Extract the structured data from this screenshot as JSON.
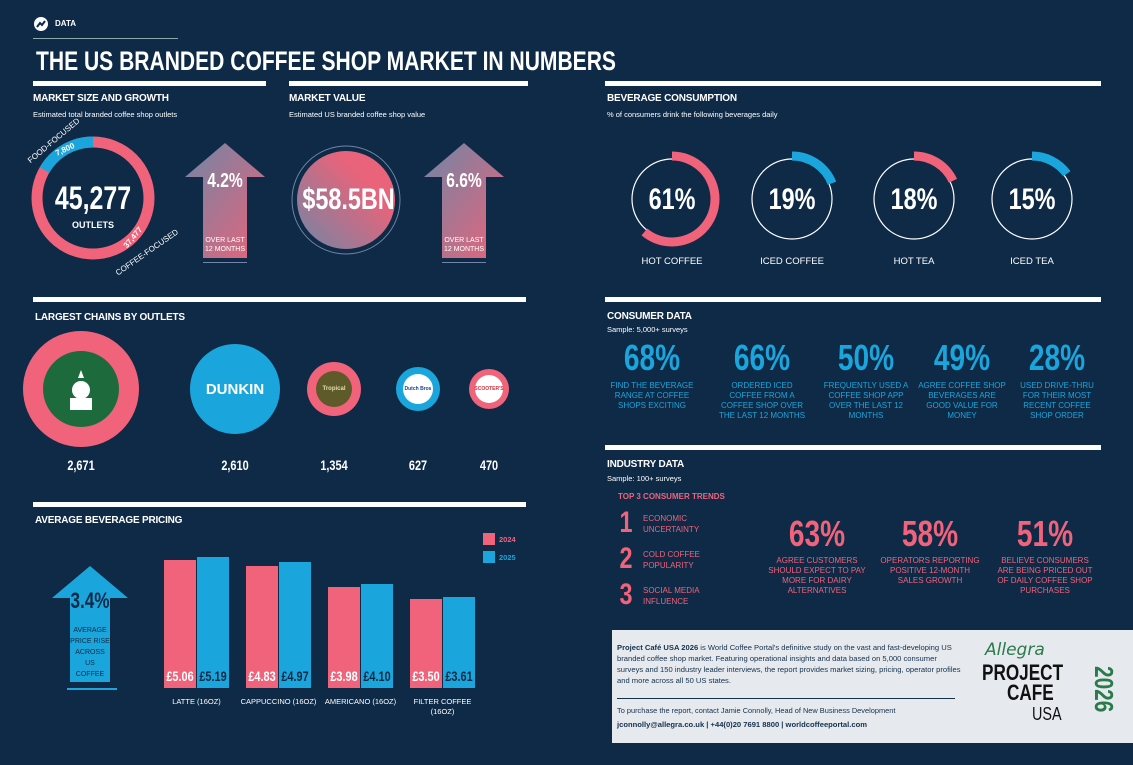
{
  "header": {
    "tag": "DATA",
    "title": "THE US BRANDED COFFEE SHOP MARKET IN NUMBERS",
    "icon": "trend-chart-icon"
  },
  "colors": {
    "background": "#0e2a47",
    "pink": "#f0637a",
    "blue": "#1aa6dc"
  },
  "market_size": {
    "title": "MARKET SIZE AND GROWTH",
    "subtitle": "Estimated total branded coffee shop outlets",
    "total": "45,277",
    "total_label": "OUTLETS",
    "food_label": "FOOD-FOCUSED",
    "food_value": "7,800",
    "coffee_label": "COFFEE-FOCUSED",
    "coffee_value": "37,477",
    "growth": "4.2%",
    "growth_label": "OVER LAST 12 MONTHS"
  },
  "market_value": {
    "title": "MARKET VALUE",
    "subtitle": "Estimated US branded coffee shop value",
    "value": "$58.5BN",
    "growth": "6.6%",
    "growth_label": "OVER LAST 12 MONTHS"
  },
  "beverage": {
    "title": "BEVERAGE CONSUMPTION",
    "subtitle": "% of consumers drink the following beverages daily",
    "items": [
      {
        "value": "61%",
        "pct": 61,
        "label": "HOT COFFEE",
        "color": "#f0637a"
      },
      {
        "value": "19%",
        "pct": 19,
        "label": "ICED COFFEE",
        "color": "#1aa6dc"
      },
      {
        "value": "18%",
        "pct": 18,
        "label": "HOT TEA",
        "color": "#f0637a"
      },
      {
        "value": "15%",
        "pct": 15,
        "label": "ICED TEA",
        "color": "#1aa6dc"
      }
    ]
  },
  "consumer": {
    "title": "CONSUMER DATA",
    "subtitle": "Sample: 5,000+ surveys",
    "items": [
      {
        "value": "68%",
        "label": "FIND THE BEVERAGE RANGE AT COFFEE SHOPS EXCITING"
      },
      {
        "value": "66%",
        "label": "ORDERED ICED COFFEE FROM A COFFEE SHOP OVER THE LAST 12 MONTHS"
      },
      {
        "value": "50%",
        "label": "FREQUENTLY USED A COFFEE SHOP APP OVER THE LAST 12 MONTHS"
      },
      {
        "value": "49%",
        "label": "AGREE COFFEE SHOP BEVERAGES ARE GOOD VALUE FOR MONEY"
      },
      {
        "value": "28%",
        "label": "USED DRIVE-THRU FOR THEIR MOST RECENT COFFEE SHOP ORDER"
      }
    ]
  },
  "industry": {
    "title": "INDUSTRY DATA",
    "subtitle": "Sample: 100+ surveys",
    "trends_title": "TOP 3 CONSUMER TRENDS",
    "trends": [
      {
        "n": "1",
        "label": "ECONOMIC UNCERTAINTY"
      },
      {
        "n": "2",
        "label": "COLD COFFEE POPULARITY"
      },
      {
        "n": "3",
        "label": "SOCIAL MEDIA INFLUENCE"
      }
    ],
    "items": [
      {
        "value": "63%",
        "label": "AGREE CUSTOMERS SHOULD EXPECT TO PAY MORE FOR DAIRY ALTERNATIVES"
      },
      {
        "value": "58%",
        "label": "OPERATORS REPORTING POSITIVE 12-MONTH SALES GROWTH"
      },
      {
        "value": "51%",
        "label": "BELIEVE CONSUMERS ARE BEING PRICED OUT OF DAILY COFFEE SHOP PURCHASES"
      }
    ]
  },
  "chains": {
    "title": "LARGEST CHAINS BY OUTLETS",
    "items": [
      {
        "name": "Starbucks",
        "value": "2,671",
        "ring": "#f0637a"
      },
      {
        "name": "DUNKIN",
        "value": "2,610",
        "ring": "#1aa6dc"
      },
      {
        "name": "Tropical",
        "value": "1,354",
        "ring": "#f0637a"
      },
      {
        "name": "Dutch Bros",
        "value": "627",
        "ring": "#1aa6dc"
      },
      {
        "name": "SCOOTER'S",
        "value": "470",
        "ring": "#f0637a"
      }
    ]
  },
  "pricing": {
    "title": "AVERAGE BEVERAGE PRICING",
    "rise": "3.4%",
    "rise_label": "AVERAGE PRICE RISE ACROSS US COFFEE CHAINS"
  },
  "chart_data": {
    "type": "bar",
    "title": "AVERAGE BEVERAGE PRICING",
    "categories": [
      "LATTE (16OZ)",
      "CAPPUCCINO (16OZ)",
      "AMERICANO (16OZ)",
      "FILTER COFFEE (16OZ)"
    ],
    "series": [
      {
        "name": "2024",
        "color": "#f0637a",
        "values": [
          5.06,
          4.83,
          3.98,
          3.5
        ],
        "labels": [
          "£5.06",
          "£4.83",
          "£3.98",
          "£3.50"
        ]
      },
      {
        "name": "2025",
        "color": "#1aa6dc",
        "values": [
          5.19,
          4.97,
          4.1,
          3.61
        ],
        "labels": [
          "£5.19",
          "£4.97",
          "£4.10",
          "£3.61"
        ]
      }
    ],
    "ylim": [
      0,
      5.5
    ],
    "legend": "top-right",
    "grid": false
  },
  "footer": {
    "lead": "Project Café USA 2026",
    "body": " is World Coffee Portal's definitive study on the vast and fast-developing US branded coffee shop market. Featuring operational insights and data based on 5,000 consumer surveys and 150 industry leader interviews, the report provides market sizing, pricing, operator profiles and more across all 50 US states.",
    "contact": "To purchase the report, contact Jamie Connolly, Head of New Business Development",
    "email": "jconnolly@allegra.co.uk",
    "phone": "+44(0)20 7691 8800",
    "web": "worldcoffeeportal.com",
    "sep": "|",
    "logo_brand": "Allegra",
    "logo_line1": "PROJECT",
    "logo_line2": "CAFE",
    "logo_line3": "USA",
    "logo_year": "2026"
  }
}
